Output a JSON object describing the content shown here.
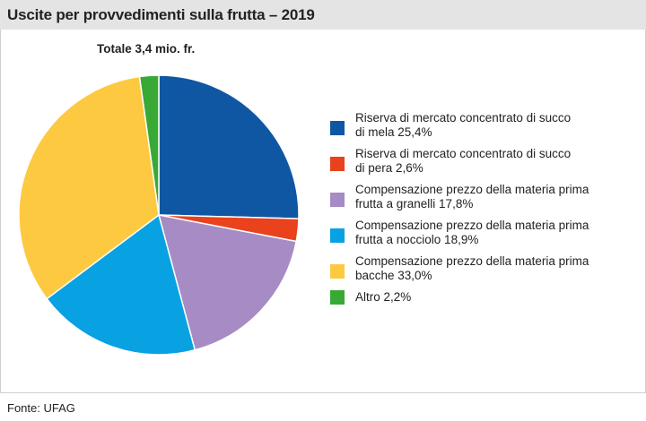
{
  "header": {
    "title": "Uscite per provvedimenti sulla frutta – 2019"
  },
  "total_label": "Totale 3,4 mio. fr.",
  "source": "Fonte: UFAG",
  "chart_data": {
    "type": "pie",
    "title": "Uscite per provvedimenti sulla frutta – 2019",
    "slices": [
      {
        "line1": "Riserva di mercato concentrato di succo",
        "line2": "di mela  25,4%",
        "value": 25.4,
        "color": "#0f57a3"
      },
      {
        "line1": "Riserva di mercato concentrato di succo",
        "line2": "di pera 2,6%",
        "value": 2.6,
        "color": "#e9421c"
      },
      {
        "line1": "Compensazione prezzo della materia prima",
        "line2": "frutta a granelli  17,8%",
        "value": 17.8,
        "color": "#a68bc4"
      },
      {
        "line1": "Compensazione prezzo della materia prima",
        "line2": "frutta a nocciolo 18,9%",
        "value": 18.9,
        "color": "#08a1e2"
      },
      {
        "line1": "Compensazione prezzo della materia prima",
        "line2": "bacche  33,0%",
        "value": 33.0,
        "color": "#fdc940"
      },
      {
        "line1": "Altro 2,2%",
        "line2": "",
        "value": 2.2,
        "color": "#39a935"
      }
    ],
    "start_angle_deg": 0,
    "direction": "clockwise",
    "legend_position": "right"
  }
}
